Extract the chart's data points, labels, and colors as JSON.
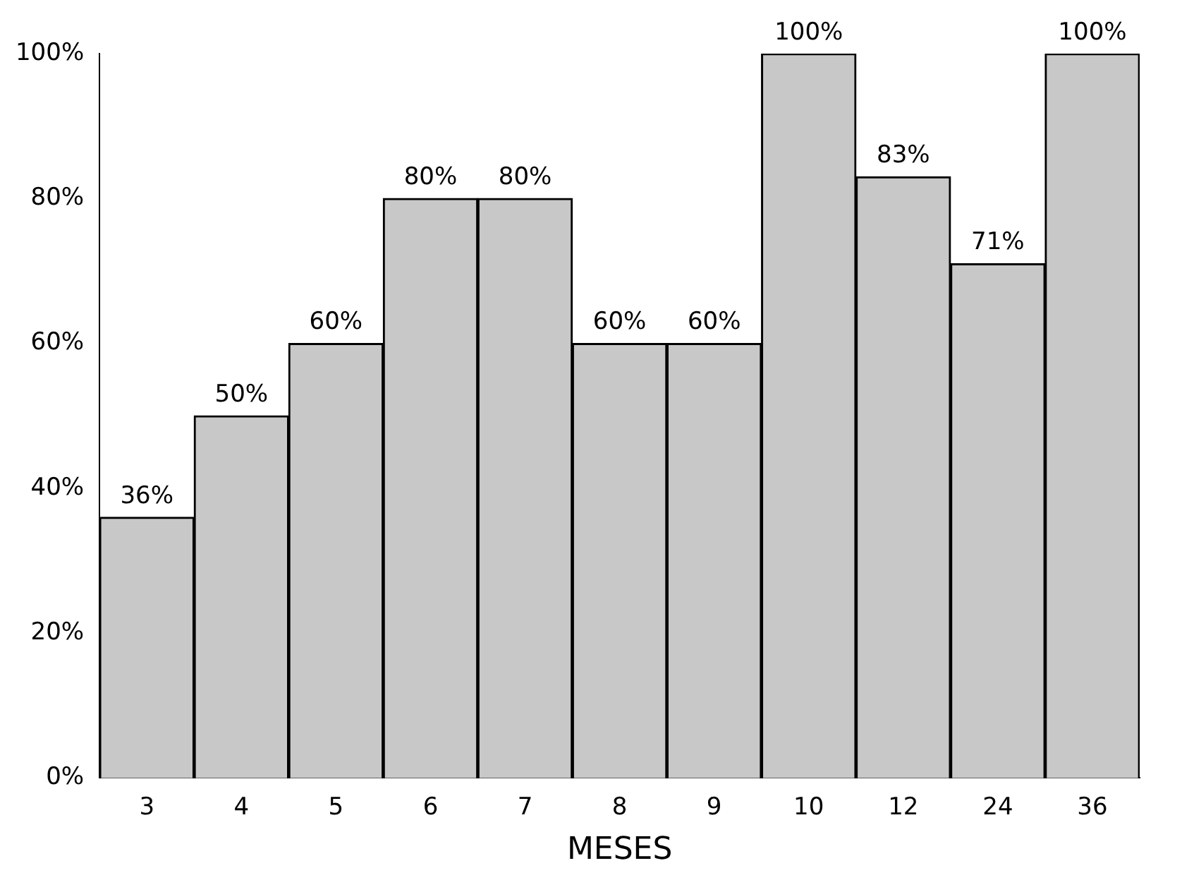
{
  "chart_data": {
    "type": "bar",
    "xlabel": "MESES",
    "categories": [
      "3",
      "4",
      "5",
      "6",
      "7",
      "8",
      "9",
      "10",
      "12",
      "24",
      "36"
    ],
    "values": [
      36,
      50,
      60,
      80,
      80,
      60,
      60,
      100,
      83,
      71,
      100
    ],
    "value_labels": [
      "36%",
      "50%",
      "60%",
      "80%",
      "80%",
      "60%",
      "60%",
      "100%",
      "83%",
      "71%",
      "100%"
    ],
    "color": "#c8c8c8",
    "ylim": [
      0,
      100
    ],
    "yticks": [
      {
        "value": 0,
        "label": "0%"
      },
      {
        "value": 20,
        "label": "20%"
      },
      {
        "value": 40,
        "label": "40%"
      },
      {
        "value": 60,
        "label": "60%"
      },
      {
        "value": 80,
        "label": "80%"
      },
      {
        "value": 100,
        "label": "100%"
      }
    ],
    "grid": false
  }
}
